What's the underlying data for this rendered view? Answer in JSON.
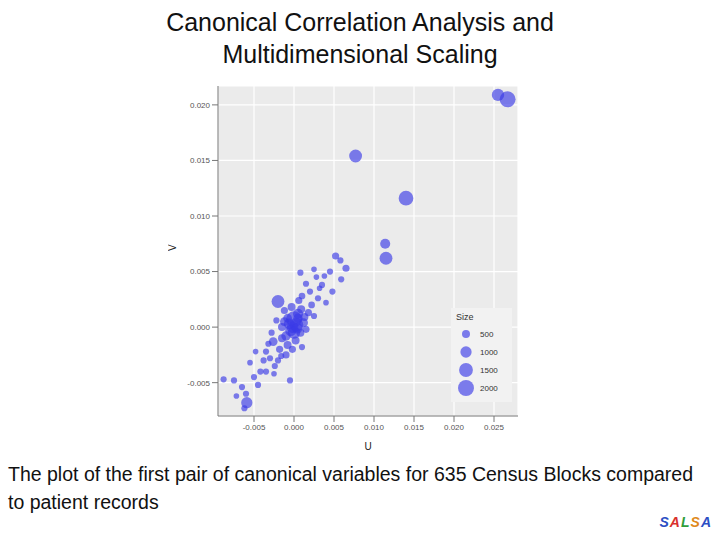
{
  "title": "Canonical Correlation Analysis and Multidimensional Scaling",
  "caption": "The plot of the first pair of canonical variables for 635 Census Blocks compared to patient records",
  "logo": "SALSA",
  "chart_data": {
    "type": "scatter",
    "x_label": "U",
    "y_label": "V",
    "color": "#3b3be6",
    "grid": true,
    "legend": "bottom right",
    "size_title": "Size",
    "size_ticks": [
      500,
      1000,
      1500,
      2000
    ],
    "size_lim": [
      0,
      2000
    ],
    "xlim": [
      -0.0095,
      0.028
    ],
    "ylim": [
      -0.008,
      0.0217
    ],
    "xticks": [
      -0.005,
      {
        "value": 0,
        "label": "0.000"
      },
      0.005,
      {
        "value": 0.01,
        "label": "0.010"
      },
      0.015,
      {
        "value": 0.02,
        "label": "0.020"
      },
      0.025
    ],
    "yticks": [
      -0.005,
      {
        "value": 0,
        "label": "0.000"
      },
      0.005,
      {
        "value": 0.01,
        "label": "0.010"
      },
      0.015,
      {
        "value": 0.02,
        "label": "0.020"
      }
    ],
    "x": [
      0.0255,
      0.0267,
      0.0077,
      0.014,
      0.0114,
      0.0115,
      0.0065,
      0.0052,
      0.0008,
      0.0045,
      0.0059,
      0.0035,
      0.0048,
      0.0028,
      0.0015,
      0.003,
      0.0022,
      0.004,
      0.001,
      -0.002,
      0.0,
      0.0003,
      -0.0004,
      0.0005,
      -0.0008,
      0.0012,
      -0.001,
      0.0008,
      -0.0003,
      0.0018,
      -0.0015,
      0.0002,
      -0.0026,
      -0.0018,
      -0.003,
      -0.0024,
      -0.0038,
      -0.0042,
      -0.0005,
      -0.0059,
      -0.0075,
      -0.0088,
      -0.006,
      -0.0065,
      -0.005,
      -0.0045,
      -0.0035,
      -0.002,
      -0.001,
      -0.0015,
      0.0005,
      -0.0006,
      0.0009,
      0.0015,
      0.0025,
      -0.0022,
      -0.0012,
      0.002,
      0.0032,
      -0.0032,
      -0.0028,
      0.001,
      -0.0002,
      0.0006,
      -0.0008,
      -0.0048,
      -0.0035,
      -0.0055,
      0.0,
      -0.0002,
      0.0004,
      0.0058,
      0.0025,
      0.0038,
      -0.0012,
      -0.0016,
      -0.0072,
      -0.0062,
      -0.0025,
      0.0013
    ],
    "values": [
      0.0209,
      0.0205,
      0.0154,
      0.0116,
      0.0075,
      0.0062,
      0.0053,
      0.0064,
      0.0049,
      0.005,
      0.0043,
      0.0038,
      0.0032,
      0.0045,
      0.0039,
      0.0026,
      0.002,
      0.0022,
      0.0028,
      0.0023,
      0.0007,
      0.0002,
      -0.0003,
      0.0012,
      0.0008,
      0.0004,
      -0.0008,
      -0.0005,
      0.0018,
      0.0013,
      0.0,
      -0.0012,
      -0.0013,
      -0.002,
      -0.0028,
      -0.0035,
      -0.003,
      -0.004,
      -0.0048,
      -0.0068,
      -0.0048,
      -0.0047,
      -0.006,
      -0.0054,
      -0.0045,
      -0.0052,
      -0.004,
      -0.003,
      -0.0025,
      -0.001,
      0.0008,
      0.0003,
      0.0016,
      -0.0002,
      0.001,
      0.0006,
      0.0015,
      0.0032,
      0.0035,
      -0.0015,
      -0.0005,
      -0.0018,
      -0.002,
      0.0024,
      -0.0016,
      -0.0022,
      -0.0022,
      -0.0032,
      -0.0005,
      0.0,
      -0.0001,
      0.006,
      0.0052,
      0.0046,
      0.0005,
      -0.0026,
      -0.0062,
      -0.0073,
      -0.0042,
      0.0009
    ],
    "size": [
      1200,
      2000,
      1300,
      1700,
      800,
      1300,
      400,
      400,
      300,
      300,
      300,
      300,
      300,
      250,
      300,
      300,
      350,
      250,
      350,
      1300,
      2000,
      1500,
      1000,
      800,
      600,
      600,
      700,
      500,
      500,
      400,
      500,
      500,
      600,
      400,
      300,
      300,
      300,
      300,
      300,
      1000,
      300,
      300,
      300,
      300,
      300,
      300,
      300,
      300,
      400,
      500,
      700,
      900,
      500,
      400,
      300,
      300,
      400,
      300,
      250,
      300,
      300,
      300,
      400,
      400,
      500,
      250,
      300,
      250,
      1200,
      1100,
      900,
      300,
      250,
      250,
      600,
      300,
      250,
      300,
      250,
      500
    ]
  }
}
